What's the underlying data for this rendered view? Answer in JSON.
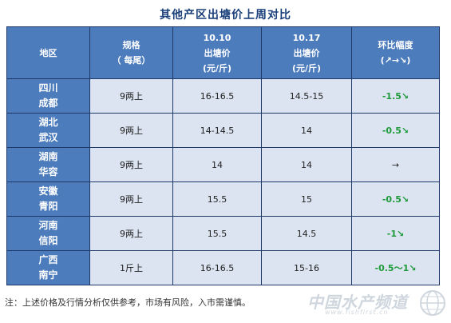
{
  "title": "其他产区出塘价上周对比",
  "header": {
    "region": "地区",
    "spec_line1": "规格",
    "spec_line2": "（ 每尾）",
    "date1_line1": "10.10",
    "date1_line2": "出塘价",
    "date1_line3": "(元/斤)",
    "date2_line1": "10.17",
    "date2_line2": "出塘价",
    "date2_line3": "(元/斤)",
    "change_line1": "环比幅度",
    "change_line2": "(↗→↘)"
  },
  "rows": [
    {
      "province": "四川",
      "city": "成都",
      "spec": "9两上",
      "price_1010": "16-16.5",
      "price_1017": "14.5-15",
      "change": "-1.5↘",
      "trend": "down"
    },
    {
      "province": "湖北",
      "city": "武汉",
      "spec": "9两上",
      "price_1010": "14-14.5",
      "price_1017": "14",
      "change": "-0.5↘",
      "trend": "down"
    },
    {
      "province": "湖南",
      "city": "华容",
      "spec": "9两上",
      "price_1010": "14",
      "price_1017": "14",
      "change": "→",
      "trend": "flat"
    },
    {
      "province": "安徽",
      "city": "青阳",
      "spec": "9两上",
      "price_1010": "15.5",
      "price_1017": "15",
      "change": "-0.5↘",
      "trend": "down"
    },
    {
      "province": "河南",
      "city": "信阳",
      "spec": "9两上",
      "price_1010": "15.5",
      "price_1017": "14.5",
      "change": "-1↘",
      "trend": "down"
    },
    {
      "province": "广西",
      "city": "南宁",
      "spec": "1斤上",
      "price_1010": "16-16.5",
      "price_1017": "15-16",
      "change": "-0.5～1↘",
      "trend": "down"
    }
  ],
  "note": "注：上述价格及行情分析仅供参考，市场有风险，入市需谨慎。",
  "watermark": {
    "text": "中国水产频道",
    "sub": "www.fishfirst.cn"
  },
  "colors": {
    "header_bg": "#4d7cbd",
    "cell_bg": "#dbe4f0",
    "border": "#1f3a68",
    "down": "#1e9a3a",
    "title": "#1a3f7a"
  }
}
